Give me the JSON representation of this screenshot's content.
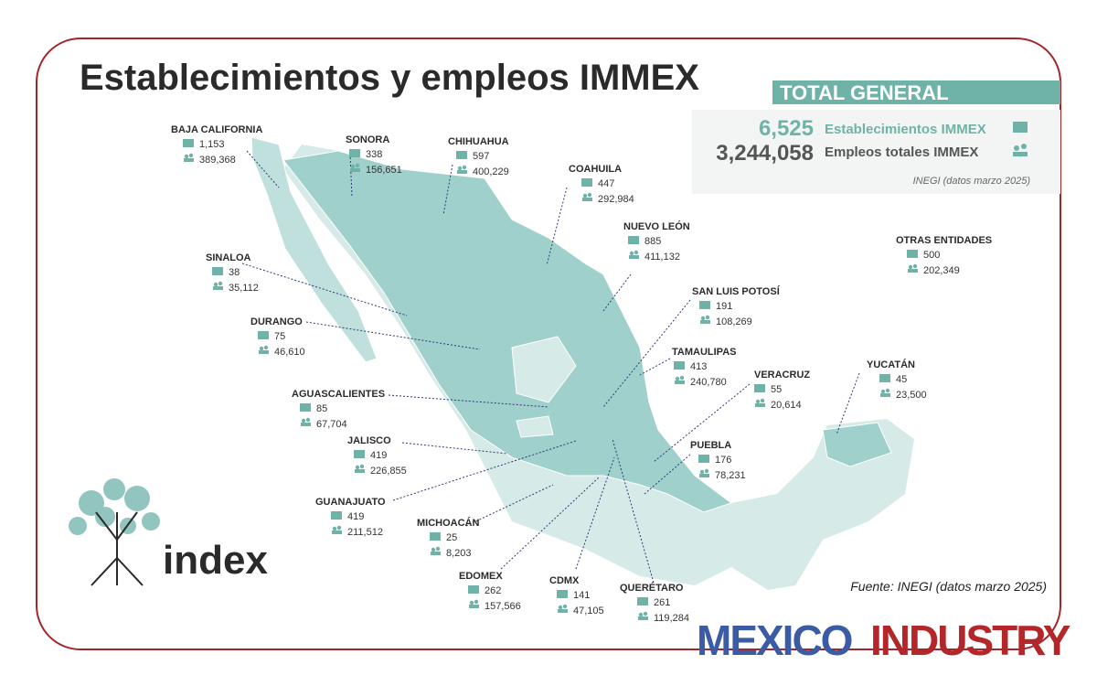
{
  "title": "Establecimientos y empleos IMMEX",
  "total": {
    "heading": "TOTAL GENERAL",
    "establishments": "6,525",
    "establishments_label": "Establecimientos IMMEX",
    "employment": "3,244,058",
    "employment_label": "Empleos totales IMMEX",
    "note": "INEGI (datos marzo 2025)"
  },
  "states": [
    {
      "name": "BAJA CALIFORNIA",
      "establishments": "1,153",
      "employment": "389,368"
    },
    {
      "name": "SONORA",
      "establishments": "338",
      "employment": "156,651"
    },
    {
      "name": "CHIHUAHUA",
      "establishments": "597",
      "employment": "400,229"
    },
    {
      "name": "COAHUILA",
      "establishments": "447",
      "employment": "292,984"
    },
    {
      "name": "NUEVO LEÓN",
      "establishments": "885",
      "employment": "411,132"
    },
    {
      "name": "SINALOA",
      "establishments": "38",
      "employment": "35,112"
    },
    {
      "name": "SAN LUIS POTOSÍ",
      "establishments": "191",
      "employment": "108,269"
    },
    {
      "name": "DURANGO",
      "establishments": "75",
      "employment": "46,610"
    },
    {
      "name": "TAMAULIPAS",
      "establishments": "413",
      "employment": "240,780"
    },
    {
      "name": "VERACRUZ",
      "establishments": "55",
      "employment": "20,614"
    },
    {
      "name": "YUCATÁN",
      "establishments": "45",
      "employment": "23,500"
    },
    {
      "name": "OTRAS ENTIDADES",
      "establishments": "500",
      "employment": "202,349"
    },
    {
      "name": "AGUASCALIENTES",
      "establishments": "85",
      "employment": "67,704"
    },
    {
      "name": "JALISCO",
      "establishments": "419",
      "employment": "226,855"
    },
    {
      "name": "PUEBLA",
      "establishments": "176",
      "employment": "78,231"
    },
    {
      "name": "GUANAJUATO",
      "establishments": "419",
      "employment": "211,512"
    },
    {
      "name": "MICHOACÁN",
      "establishments": "25",
      "employment": "8,203"
    },
    {
      "name": "EDOMEX",
      "establishments": "262",
      "employment": "157,566"
    },
    {
      "name": "CDMX",
      "establishments": "141",
      "employment": "47,105"
    },
    {
      "name": "QUERÉTARO",
      "establishments": "261",
      "employment": "119,284"
    }
  ],
  "source": "Fuente: INEGI (datos marzo 2025)",
  "logo": "index",
  "brand": {
    "first": "MEXICO",
    "second": "INDUSTRY"
  }
}
